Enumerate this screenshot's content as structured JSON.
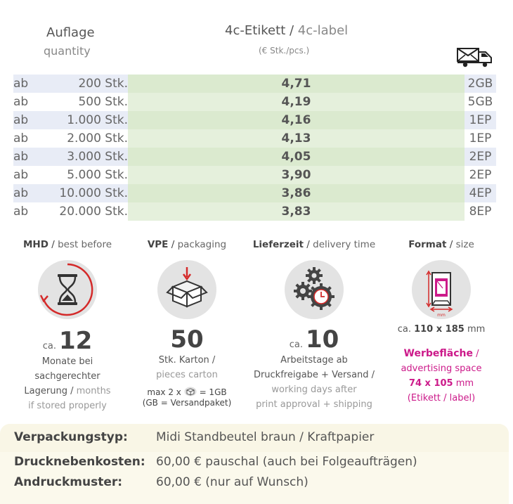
{
  "header": {
    "quantity_de": "Auflage",
    "quantity_en": "quantity",
    "label_de": "4c-Etikett",
    "label_sep": " / ",
    "label_en": "4c-label",
    "unit": "(€ Stk./pcs.)"
  },
  "rows": [
    {
      "ab": "ab",
      "qty": "200 Stk.",
      "price": "4,71",
      "ship": "2GB"
    },
    {
      "ab": "ab",
      "qty": "500 Stk.",
      "price": "4,19",
      "ship": "5GB"
    },
    {
      "ab": "ab",
      "qty": "1.000 Stk.",
      "price": "4,16",
      "ship": "1EP"
    },
    {
      "ab": "ab",
      "qty": "2.000 Stk.",
      "price": "4,13",
      "ship": "1EP"
    },
    {
      "ab": "ab",
      "qty": "3.000 Stk.",
      "price": "4,05",
      "ship": "2EP"
    },
    {
      "ab": "ab",
      "qty": "5.000 Stk.",
      "price": "3,90",
      "ship": "2EP"
    },
    {
      "ab": "ab",
      "qty": "10.000 Stk.",
      "price": "3,86",
      "ship": "4EP"
    },
    {
      "ab": "ab",
      "qty": "20.000 Stk.",
      "price": "3,83",
      "ship": "8EP"
    }
  ],
  "mhd": {
    "title_de": "MHD",
    "title_en": "best before",
    "ca": "ca.",
    "value": "12",
    "line1": "Monate bei",
    "line2": "sachgerechter",
    "line3_de": "Lagerung",
    "line3_en": "months",
    "line4": "if stored properly"
  },
  "vpe": {
    "title_de": "VPE",
    "title_en": "packaging",
    "value": "50",
    "line1": "Stk. Karton /",
    "line2": "pieces carton",
    "note1_a": "max 2 x",
    "note1_b": "= 1GB",
    "note2": "(GB = Versandpaket)"
  },
  "delivery": {
    "title_de": "Lieferzeit",
    "title_en": "delivery time",
    "ca": "ca.",
    "value": "10",
    "line1": "Arbeitstage ab",
    "line2": "Druckfreigabe + Versand /",
    "line3": "working days after",
    "line4": "print approval + shipping"
  },
  "format": {
    "title_de": "Format",
    "title_en": "size",
    "ca": "ca.",
    "size": "110 x 185",
    "unit": "mm",
    "adv_de": "Werbefläche",
    "adv_en": "advertising space",
    "adv_size": "74 x 105",
    "adv_unit": "mm",
    "adv_note": "(Etikett / label)",
    "icon_unit": "mm"
  },
  "bottom": {
    "pack_label": "Verpackungstyp:",
    "pack_value": "Midi Standbeutel braun / Kraftpapier",
    "cost_label": "Drucknebenkosten:",
    "cost_value": "60,00 € pauschal (auch bei Folgeaufträgen)",
    "proof_label": "Andruckmuster:",
    "proof_value": "60,00 € (nur auf Wunsch)"
  },
  "colors": {
    "accent_pink": "#cc1a8a",
    "accent_red": "#d42a2a",
    "price_green": "#dbeacf",
    "row_blue": "#e8ecf6"
  },
  "icons": [
    "truck-envelope-icon",
    "hourglass-icon",
    "box-icon",
    "gears-clock-icon",
    "bag-format-icon"
  ]
}
